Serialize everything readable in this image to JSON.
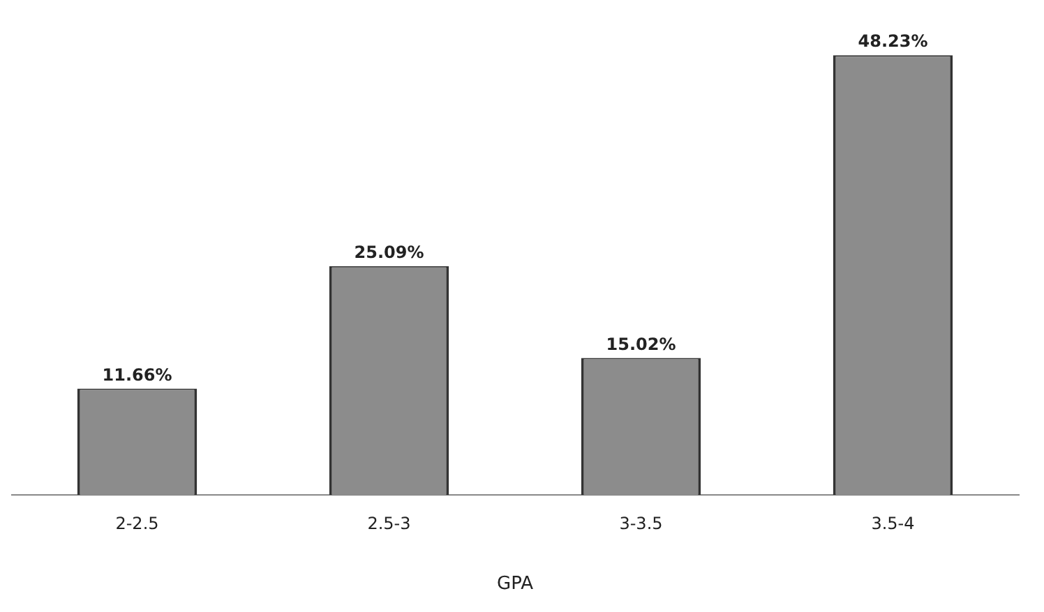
{
  "chart_data": {
    "type": "bar",
    "xlabel": "GPA",
    "categories": [
      "2-2.5",
      "2.5-3",
      "3-3.5",
      "3.5-4"
    ],
    "values": [
      11.66,
      25.09,
      15.02,
      48.23
    ],
    "value_labels": [
      "11.66%",
      "25.09%",
      "15.02%",
      "48.23%"
    ],
    "color": "#8c8c8c",
    "grid": false,
    "legend": false
  }
}
